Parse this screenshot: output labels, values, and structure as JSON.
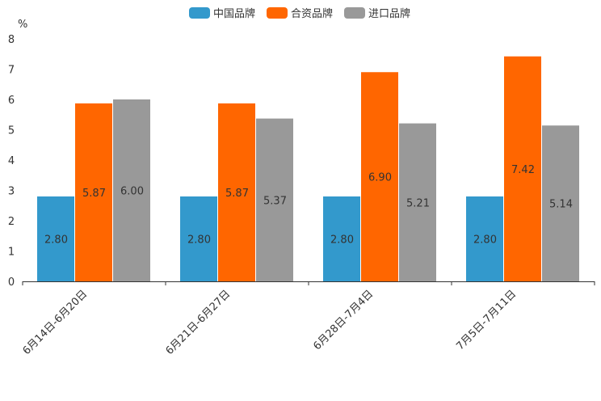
{
  "chart_data": {
    "type": "bar",
    "ylabel": "%",
    "ylim": [
      0,
      8
    ],
    "yticks": [
      "0",
      "1",
      "2",
      "3",
      "4",
      "5",
      "6",
      "7",
      "8"
    ],
    "categories": [
      "6月14日-6月20日",
      "6月21日-6月27日",
      "6月28日-7月4日",
      "7月5日-7月11日"
    ],
    "series": [
      {
        "name": "中国品牌",
        "color": "#3399cc",
        "values": [
          2.8,
          2.8,
          2.8,
          2.8
        ],
        "labels": [
          "2.80",
          "2.80",
          "2.80",
          "2.80"
        ]
      },
      {
        "name": "合资品牌",
        "color": "#ff6600",
        "values": [
          5.87,
          5.87,
          6.9,
          7.42
        ],
        "labels": [
          "5.87",
          "5.87",
          "6.90",
          "7.42"
        ]
      },
      {
        "name": "进口品牌",
        "color": "#999999",
        "values": [
          6.0,
          5.37,
          5.21,
          5.14
        ],
        "labels": [
          "6.00",
          "5.37",
          "5.21",
          "5.14"
        ]
      }
    ],
    "legend_position": "top-center"
  }
}
